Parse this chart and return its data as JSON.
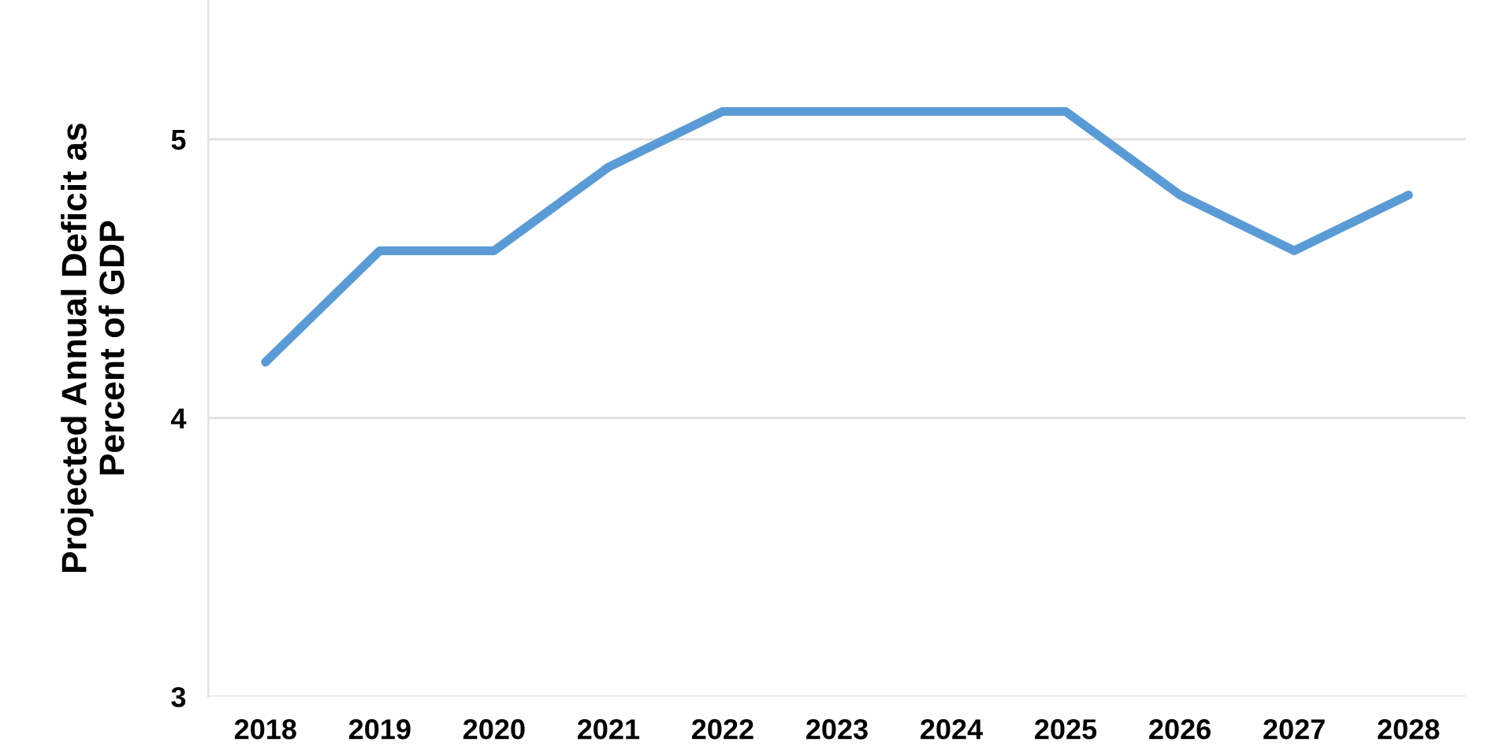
{
  "chart_data": {
    "type": "line",
    "ylabel": "Projected Annual Deficit as\nPercent of GDP",
    "categories": [
      "2018",
      "2019",
      "2020",
      "2021",
      "2022",
      "2023",
      "2024",
      "2025",
      "2026",
      "2027",
      "2028"
    ],
    "series": [
      {
        "color": "#5b9bd5",
        "values": [
          4.2,
          4.6,
          4.6,
          4.9,
          5.1,
          5.1,
          5.1,
          5.1,
          4.8,
          4.6,
          4.8
        ]
      }
    ],
    "ylim": [
      3,
      5.5
    ],
    "yticks": [
      3,
      4,
      5
    ],
    "grid": "y",
    "legend": false,
    "marker": "none",
    "line_style": "solid"
  }
}
